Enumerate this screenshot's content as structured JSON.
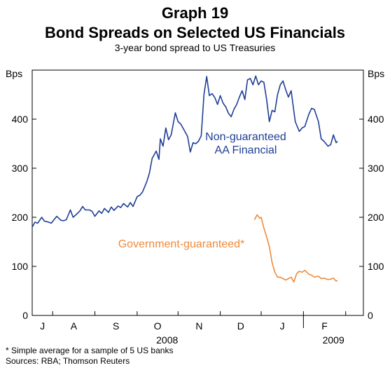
{
  "graph_number": "Graph 19",
  "chart_data": {
    "type": "line",
    "title": "Bond Spreads on Selected US Financials",
    "subtitle": "3-year bond spread to US Treasuries",
    "ylabel_left": "Bps",
    "ylabel_right": "Bps",
    "ylim": [
      0,
      500
    ],
    "yticks": [
      0,
      100,
      200,
      300,
      400
    ],
    "month_ticks": [
      "J",
      "A",
      "S",
      "O",
      "N",
      "D",
      "J",
      "F"
    ],
    "year_labels": [
      "2008",
      "2009"
    ],
    "x_domain": [
      "2008-06-16",
      "2009-02-14"
    ],
    "grid": false,
    "series": [
      {
        "name": "Non-guaranteed AA Financial",
        "label_lines": [
          "Non-guaranteed",
          "AA Financial"
        ],
        "color": "#1f3f95",
        "points": [
          [
            "2008-06-16",
            180
          ],
          [
            "2008-06-18",
            190
          ],
          [
            "2008-06-20",
            188
          ],
          [
            "2008-06-23",
            200
          ],
          [
            "2008-06-25",
            192
          ],
          [
            "2008-06-27",
            191
          ],
          [
            "2008-06-30",
            188
          ],
          [
            "2008-07-02",
            195
          ],
          [
            "2008-07-04",
            202
          ],
          [
            "2008-07-07",
            194
          ],
          [
            "2008-07-09",
            193
          ],
          [
            "2008-07-11",
            195
          ],
          [
            "2008-07-14",
            215
          ],
          [
            "2008-07-16",
            200
          ],
          [
            "2008-07-18",
            205
          ],
          [
            "2008-07-21",
            213
          ],
          [
            "2008-07-23",
            222
          ],
          [
            "2008-07-25",
            215
          ],
          [
            "2008-07-28",
            215
          ],
          [
            "2008-07-30",
            212
          ],
          [
            "2008-08-01",
            202
          ],
          [
            "2008-08-04",
            213
          ],
          [
            "2008-08-06",
            208
          ],
          [
            "2008-08-08",
            218
          ],
          [
            "2008-08-11",
            210
          ],
          [
            "2008-08-13",
            221
          ],
          [
            "2008-08-15",
            214
          ],
          [
            "2008-08-18",
            223
          ],
          [
            "2008-08-20",
            220
          ],
          [
            "2008-08-22",
            228
          ],
          [
            "2008-08-25",
            221
          ],
          [
            "2008-08-27",
            230
          ],
          [
            "2008-08-29",
            222
          ],
          [
            "2008-09-01",
            242
          ],
          [
            "2008-09-03",
            245
          ],
          [
            "2008-09-05",
            252
          ],
          [
            "2008-09-08",
            272
          ],
          [
            "2008-09-10",
            290
          ],
          [
            "2008-09-12",
            320
          ],
          [
            "2008-09-15",
            335
          ],
          [
            "2008-09-17",
            318
          ],
          [
            "2008-09-18",
            360
          ],
          [
            "2008-09-20",
            345
          ],
          [
            "2008-09-22",
            382
          ],
          [
            "2008-09-24",
            358
          ],
          [
            "2008-09-26",
            368
          ],
          [
            "2008-09-29",
            413
          ],
          [
            "2008-10-01",
            395
          ],
          [
            "2008-10-03",
            390
          ],
          [
            "2008-10-06",
            375
          ],
          [
            "2008-10-08",
            365
          ],
          [
            "2008-10-10",
            333
          ],
          [
            "2008-10-12",
            352
          ],
          [
            "2008-10-14",
            350
          ],
          [
            "2008-10-16",
            355
          ],
          [
            "2008-10-18",
            366
          ],
          [
            "2008-10-20",
            450
          ],
          [
            "2008-10-22",
            487
          ],
          [
            "2008-10-24",
            448
          ],
          [
            "2008-10-26",
            452
          ],
          [
            "2008-10-28",
            444
          ],
          [
            "2008-10-30",
            430
          ],
          [
            "2008-11-01",
            448
          ],
          [
            "2008-11-03",
            433
          ],
          [
            "2008-11-05",
            425
          ],
          [
            "2008-11-07",
            412
          ],
          [
            "2008-11-09",
            405
          ],
          [
            "2008-11-11",
            420
          ],
          [
            "2008-11-13",
            430
          ],
          [
            "2008-11-15",
            445
          ],
          [
            "2008-11-17",
            458
          ],
          [
            "2008-11-19",
            440
          ],
          [
            "2008-11-21",
            480
          ],
          [
            "2008-11-23",
            483
          ],
          [
            "2008-11-25",
            470
          ],
          [
            "2008-11-27",
            488
          ],
          [
            "2008-11-29",
            470
          ],
          [
            "2008-12-01",
            478
          ],
          [
            "2008-12-03",
            475
          ],
          [
            "2008-12-05",
            440
          ],
          [
            "2008-12-07",
            395
          ],
          [
            "2008-12-09",
            418
          ],
          [
            "2008-12-11",
            415
          ],
          [
            "2008-12-13",
            450
          ],
          [
            "2008-12-15",
            470
          ],
          [
            "2008-12-17",
            478
          ],
          [
            "2008-12-19",
            460
          ],
          [
            "2008-12-21",
            445
          ],
          [
            "2008-12-23",
            458
          ],
          [
            "2008-12-26",
            395
          ],
          [
            "2008-12-29",
            375
          ],
          [
            "2008-12-31",
            382
          ],
          [
            "2009-01-02",
            385
          ],
          [
            "2009-01-05",
            410
          ],
          [
            "2009-01-07",
            422
          ],
          [
            "2009-01-09",
            420
          ],
          [
            "2009-01-12",
            395
          ],
          [
            "2009-01-14",
            360
          ],
          [
            "2009-01-16",
            355
          ],
          [
            "2009-01-19",
            345
          ],
          [
            "2009-01-21",
            348
          ],
          [
            "2009-01-23",
            368
          ],
          [
            "2009-01-25",
            352
          ],
          [
            "2009-01-26",
            355
          ]
        ]
      },
      {
        "name": "Government-guaranteed*",
        "color": "#ef8a3a",
        "points": [
          [
            "2008-11-26",
            195
          ],
          [
            "2008-11-28",
            205
          ],
          [
            "2008-11-30",
            198
          ],
          [
            "2008-12-01",
            200
          ],
          [
            "2008-12-03",
            178
          ],
          [
            "2008-12-05",
            160
          ],
          [
            "2008-12-07",
            140
          ],
          [
            "2008-12-09",
            108
          ],
          [
            "2008-12-11",
            88
          ],
          [
            "2008-12-13",
            78
          ],
          [
            "2008-12-15",
            78
          ],
          [
            "2008-12-17",
            75
          ],
          [
            "2008-12-19",
            72
          ],
          [
            "2008-12-21",
            75
          ],
          [
            "2008-12-23",
            78
          ],
          [
            "2008-12-25",
            68
          ],
          [
            "2008-12-27",
            85
          ],
          [
            "2008-12-29",
            90
          ],
          [
            "2008-12-31",
            88
          ],
          [
            "2009-01-02",
            92
          ],
          [
            "2009-01-05",
            84
          ],
          [
            "2009-01-07",
            82
          ],
          [
            "2009-01-09",
            78
          ],
          [
            "2009-01-12",
            80
          ],
          [
            "2009-01-14",
            75
          ],
          [
            "2009-01-16",
            76
          ],
          [
            "2009-01-19",
            73
          ],
          [
            "2009-01-21",
            74
          ],
          [
            "2009-01-23",
            76
          ],
          [
            "2009-01-25",
            70
          ],
          [
            "2009-01-26",
            71
          ]
        ]
      }
    ]
  },
  "footnotes": [
    "*    Simple average for a sample of 5 US banks",
    "Sources: RBA; Thomson Reuters"
  ]
}
